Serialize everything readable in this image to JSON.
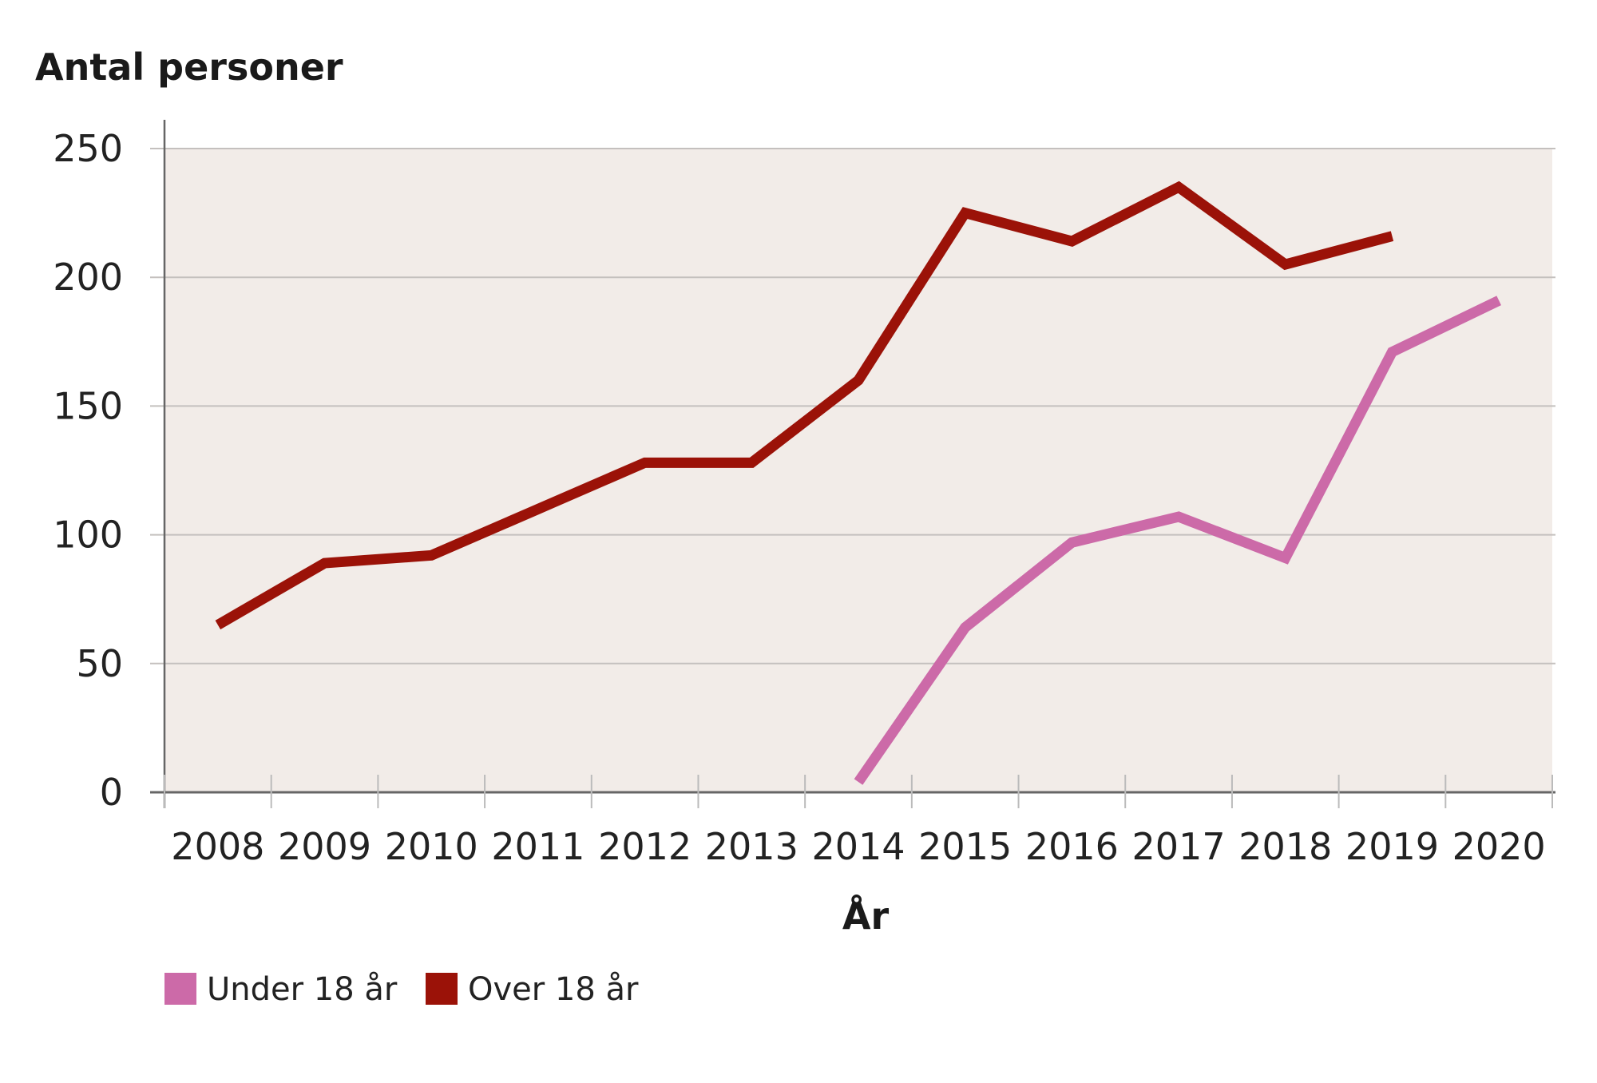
{
  "chart_data": {
    "type": "line",
    "title": "Antal personer",
    "xlabel": "År",
    "ylabel": "Antal personer",
    "categories": [
      "2008",
      "2009",
      "2010",
      "2011",
      "2012",
      "2013",
      "2014",
      "2015",
      "2016",
      "2017",
      "2018",
      "2019",
      "2020"
    ],
    "ylim": [
      0,
      250
    ],
    "yticks": [
      0,
      50,
      100,
      150,
      200,
      250
    ],
    "grid": true,
    "legend_position": "bottom-left",
    "series": [
      {
        "name": "Under 18 år",
        "color": "#cc6aa8",
        "values": [
          null,
          null,
          null,
          null,
          null,
          null,
          4,
          64,
          97,
          107,
          91,
          171,
          191
        ]
      },
      {
        "name": "Over 18 år",
        "color": "#9b1208",
        "values": [
          65,
          89,
          92,
          110,
          128,
          128,
          160,
          225,
          214,
          235,
          205,
          216,
          null
        ]
      }
    ]
  }
}
